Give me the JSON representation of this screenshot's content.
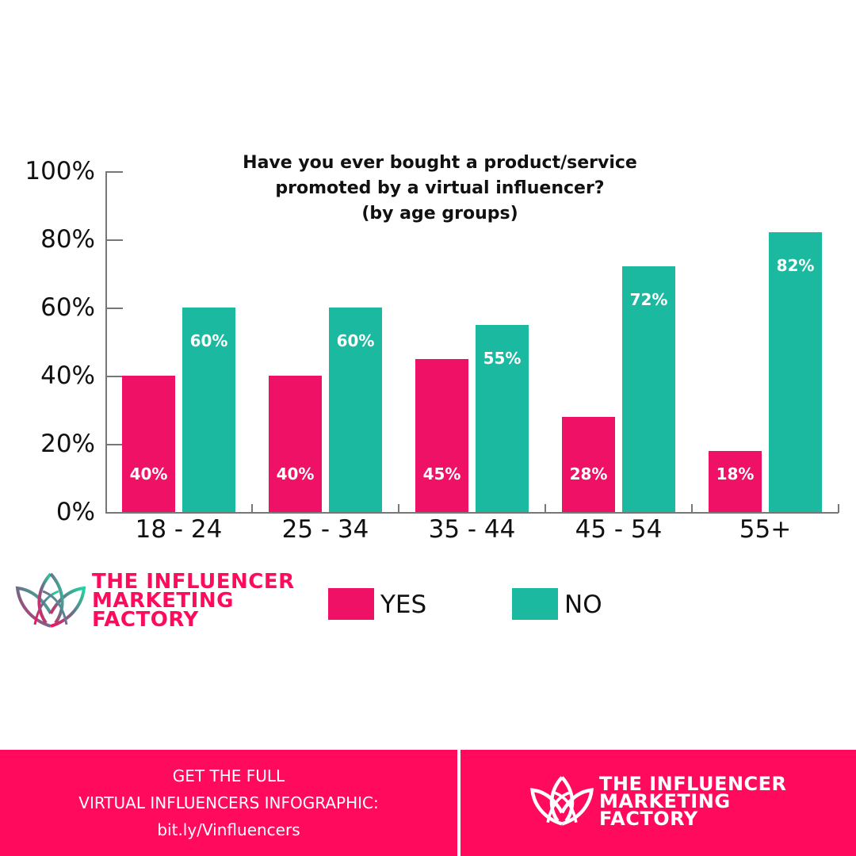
{
  "chart_data": {
    "type": "bar",
    "title": "Have you ever bought a product/service promoted by a virtual influencer? (by age groups)",
    "title_lines": [
      "Have you ever bought a product/service",
      "promoted by a virtual influencer?",
      "(by age groups)"
    ],
    "categories": [
      "18 - 24",
      "25 - 34",
      "35 - 44",
      "45 - 54",
      "55+"
    ],
    "series": [
      {
        "name": "YES",
        "color": "#ee1166",
        "values": [
          40,
          40,
          45,
          28,
          18
        ]
      },
      {
        "name": "NO",
        "color": "#1bb9a0",
        "values": [
          60,
          60,
          55,
          72,
          82
        ]
      }
    ],
    "value_labels": {
      "YES": [
        "40%",
        "40%",
        "45%",
        "28%",
        "18%"
      ],
      "NO": [
        "60%",
        "60%",
        "55%",
        "72%",
        "82%"
      ]
    },
    "yticks": [
      "0%",
      "20%",
      "40%",
      "60%",
      "80%",
      "100%"
    ],
    "ylim": [
      0,
      100
    ],
    "xlabel": "",
    "ylabel": "",
    "grid": false,
    "legend_position": "bottom"
  },
  "legend": {
    "yes_label": "YES",
    "no_label": "NO"
  },
  "brand": {
    "line1": "THE INFLUENCER",
    "line2": "MARKETING",
    "line3": "FACTORY",
    "color": "#ff0a5c"
  },
  "footer": {
    "line1": "GET THE FULL",
    "line2": "VIRTUAL INFLUENCERS INFOGRAPHIC:",
    "line3": "bit.ly/Vinfluencers",
    "bg_color": "#ff0a5c"
  }
}
